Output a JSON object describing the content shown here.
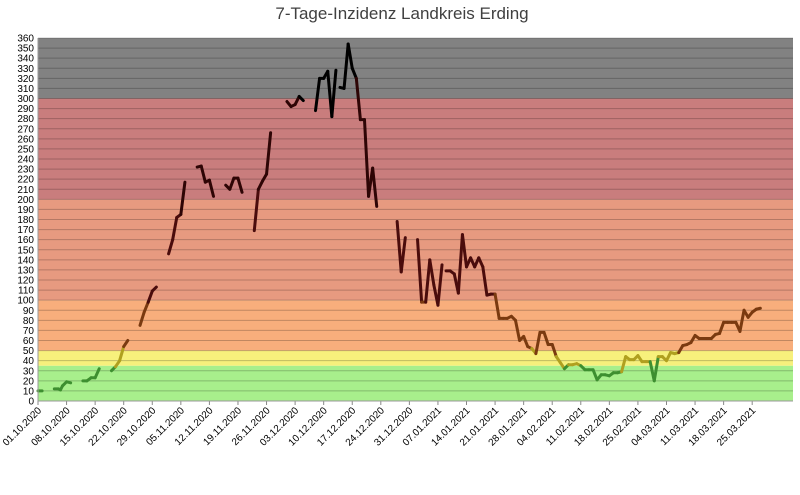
{
  "chart_data": {
    "type": "line",
    "title": "7-Tage-Inzidenz Landkreis Erding",
    "xlabel": "",
    "ylabel": "",
    "ylim": [
      0,
      360
    ],
    "y_tick_step": 10,
    "x_tick_labels": [
      "01.10.2020",
      "08.10.2020",
      "15.10.2020",
      "22.10.2020",
      "29.10.2020",
      "05.11.2020",
      "12.11.2020",
      "19.11.2020",
      "26.11.2020",
      "03.12.2020",
      "10.12.2020",
      "17.12.2020",
      "24.12.2020",
      "31.12.2020",
      "07.01.2021",
      "14.01.2021",
      "21.01.2021",
      "28.01.2021",
      "04.02.2021",
      "11.02.2021",
      "18.02.2021",
      "25.02.2021",
      "04.03.2021",
      "11.03.2021",
      "18.03.2021",
      "25.03.2021"
    ],
    "x_day_range": [
      0,
      185
    ],
    "grid": true,
    "bands": [
      {
        "from": 0,
        "to": 35,
        "color": "#a8ef8c"
      },
      {
        "from": 35,
        "to": 50,
        "color": "#f7f07c"
      },
      {
        "from": 50,
        "to": 100,
        "color": "#f8ae7c"
      },
      {
        "from": 100,
        "to": 200,
        "color": "#e79a80"
      },
      {
        "from": 200,
        "to": 300,
        "color": "#c97d7d"
      },
      {
        "from": 300,
        "to": 360,
        "color": "#828282"
      }
    ],
    "colors": {
      "green": "#3e8f30",
      "yellow": "#b0a020",
      "orange": "#7a3a10",
      "red": "#4a0c0c",
      "dark_red": "#2e0505",
      "black": "#000000"
    },
    "series": [
      {
        "points": [
          [
            0,
            10
          ],
          [
            1,
            10
          ]
        ]
      },
      {
        "points": [
          [
            4,
            12
          ],
          [
            5,
            12
          ],
          [
            5.5,
            11
          ],
          [
            6,
            15
          ],
          [
            7,
            19
          ],
          [
            8,
            18
          ]
        ]
      },
      {
        "points": [
          [
            11,
            20
          ],
          [
            12,
            20
          ],
          [
            13,
            23
          ],
          [
            14,
            23
          ],
          [
            15,
            32
          ]
        ]
      },
      {
        "points": [
          [
            18,
            30
          ],
          [
            19,
            34
          ],
          [
            20,
            40
          ],
          [
            21,
            54
          ],
          [
            22,
            60
          ]
        ]
      },
      {
        "points": [
          [
            25,
            75
          ],
          [
            26,
            88
          ],
          [
            27,
            98
          ],
          [
            28,
            109
          ],
          [
            29,
            113
          ]
        ]
      },
      {
        "points": [
          [
            32,
            146
          ],
          [
            33,
            160
          ],
          [
            34,
            182
          ],
          [
            35,
            185
          ],
          [
            36,
            217
          ]
        ]
      },
      {
        "points": [
          [
            39,
            232
          ],
          [
            40,
            233
          ],
          [
            41,
            217
          ],
          [
            42,
            219
          ],
          [
            43,
            203
          ]
        ]
      },
      {
        "points": [
          [
            46,
            214
          ],
          [
            47,
            210
          ],
          [
            48,
            221
          ],
          [
            49,
            221
          ],
          [
            50,
            207
          ]
        ]
      },
      {
        "points": [
          [
            53,
            169
          ],
          [
            54,
            210
          ],
          [
            55,
            218
          ],
          [
            56,
            225
          ],
          [
            57,
            266
          ]
        ]
      },
      {
        "points": [
          [
            61,
            297
          ],
          [
            62,
            292
          ],
          [
            63,
            294
          ],
          [
            64,
            302
          ],
          [
            65,
            298
          ]
        ]
      },
      {
        "points": [
          [
            68,
            288
          ],
          [
            69,
            320
          ],
          [
            70,
            320
          ],
          [
            71,
            327
          ],
          [
            72,
            282
          ],
          [
            73,
            328
          ]
        ]
      },
      {
        "points": [
          [
            74,
            311
          ],
          [
            75,
            310
          ],
          [
            76,
            354
          ],
          [
            77,
            330
          ],
          [
            78,
            320
          ],
          [
            79,
            279
          ],
          [
            80,
            279
          ],
          [
            81,
            203
          ],
          [
            82,
            231
          ],
          [
            83,
            193
          ]
        ]
      },
      {
        "points": [
          [
            88,
            178
          ],
          [
            89,
            128
          ],
          [
            90,
            162
          ]
        ]
      },
      {
        "points": [
          [
            93,
            160
          ],
          [
            94,
            98
          ],
          [
            95,
            98
          ],
          [
            96,
            140
          ],
          [
            97,
            115
          ],
          [
            98,
            95
          ],
          [
            99,
            135
          ]
        ]
      },
      {
        "points": [
          [
            100,
            129
          ],
          [
            101,
            129
          ],
          [
            102,
            126
          ],
          [
            103,
            107
          ],
          [
            104,
            165
          ],
          [
            105,
            133
          ],
          [
            106,
            142
          ],
          [
            107,
            133
          ],
          [
            108,
            142
          ],
          [
            109,
            133
          ],
          [
            110,
            105
          ],
          [
            111,
            106
          ],
          [
            112,
            106
          ],
          [
            113,
            82
          ],
          [
            114,
            82
          ],
          [
            115,
            82
          ],
          [
            116,
            84
          ],
          [
            117,
            80
          ],
          [
            118,
            60
          ],
          [
            119,
            64
          ],
          [
            120,
            54
          ],
          [
            121,
            52
          ],
          [
            122,
            47
          ],
          [
            123,
            68
          ],
          [
            124,
            68
          ],
          [
            125,
            56
          ],
          [
            126,
            56
          ],
          [
            127,
            44
          ],
          [
            128,
            38
          ],
          [
            129,
            32
          ],
          [
            130,
            36
          ],
          [
            131,
            36
          ],
          [
            132,
            37
          ],
          [
            133,
            35
          ],
          [
            134,
            31
          ],
          [
            135,
            31
          ],
          [
            136,
            31
          ],
          [
            137,
            21
          ],
          [
            138,
            26
          ],
          [
            139,
            26
          ],
          [
            140,
            25
          ],
          [
            141,
            28
          ],
          [
            142,
            28
          ],
          [
            143,
            29
          ],
          [
            144,
            44
          ],
          [
            145,
            41
          ],
          [
            146,
            41
          ],
          [
            147,
            45
          ],
          [
            148,
            39
          ],
          [
            149,
            39
          ],
          [
            150,
            39
          ],
          [
            151,
            20
          ],
          [
            152,
            44
          ],
          [
            153,
            44
          ],
          [
            154,
            40
          ],
          [
            155,
            48
          ],
          [
            156,
            47
          ],
          [
            157,
            48
          ],
          [
            158,
            55
          ],
          [
            159,
            56
          ],
          [
            160,
            58
          ],
          [
            161,
            65
          ],
          [
            162,
            62
          ],
          [
            163,
            62
          ],
          [
            164,
            62
          ],
          [
            165,
            62
          ],
          [
            166,
            66
          ],
          [
            167,
            67
          ],
          [
            168,
            78
          ],
          [
            169,
            78
          ],
          [
            170,
            78
          ],
          [
            171,
            78
          ],
          [
            172,
            69
          ],
          [
            173,
            90
          ],
          [
            174,
            83
          ],
          [
            175,
            88
          ],
          [
            176,
            91
          ],
          [
            177,
            92
          ]
        ]
      }
    ]
  }
}
